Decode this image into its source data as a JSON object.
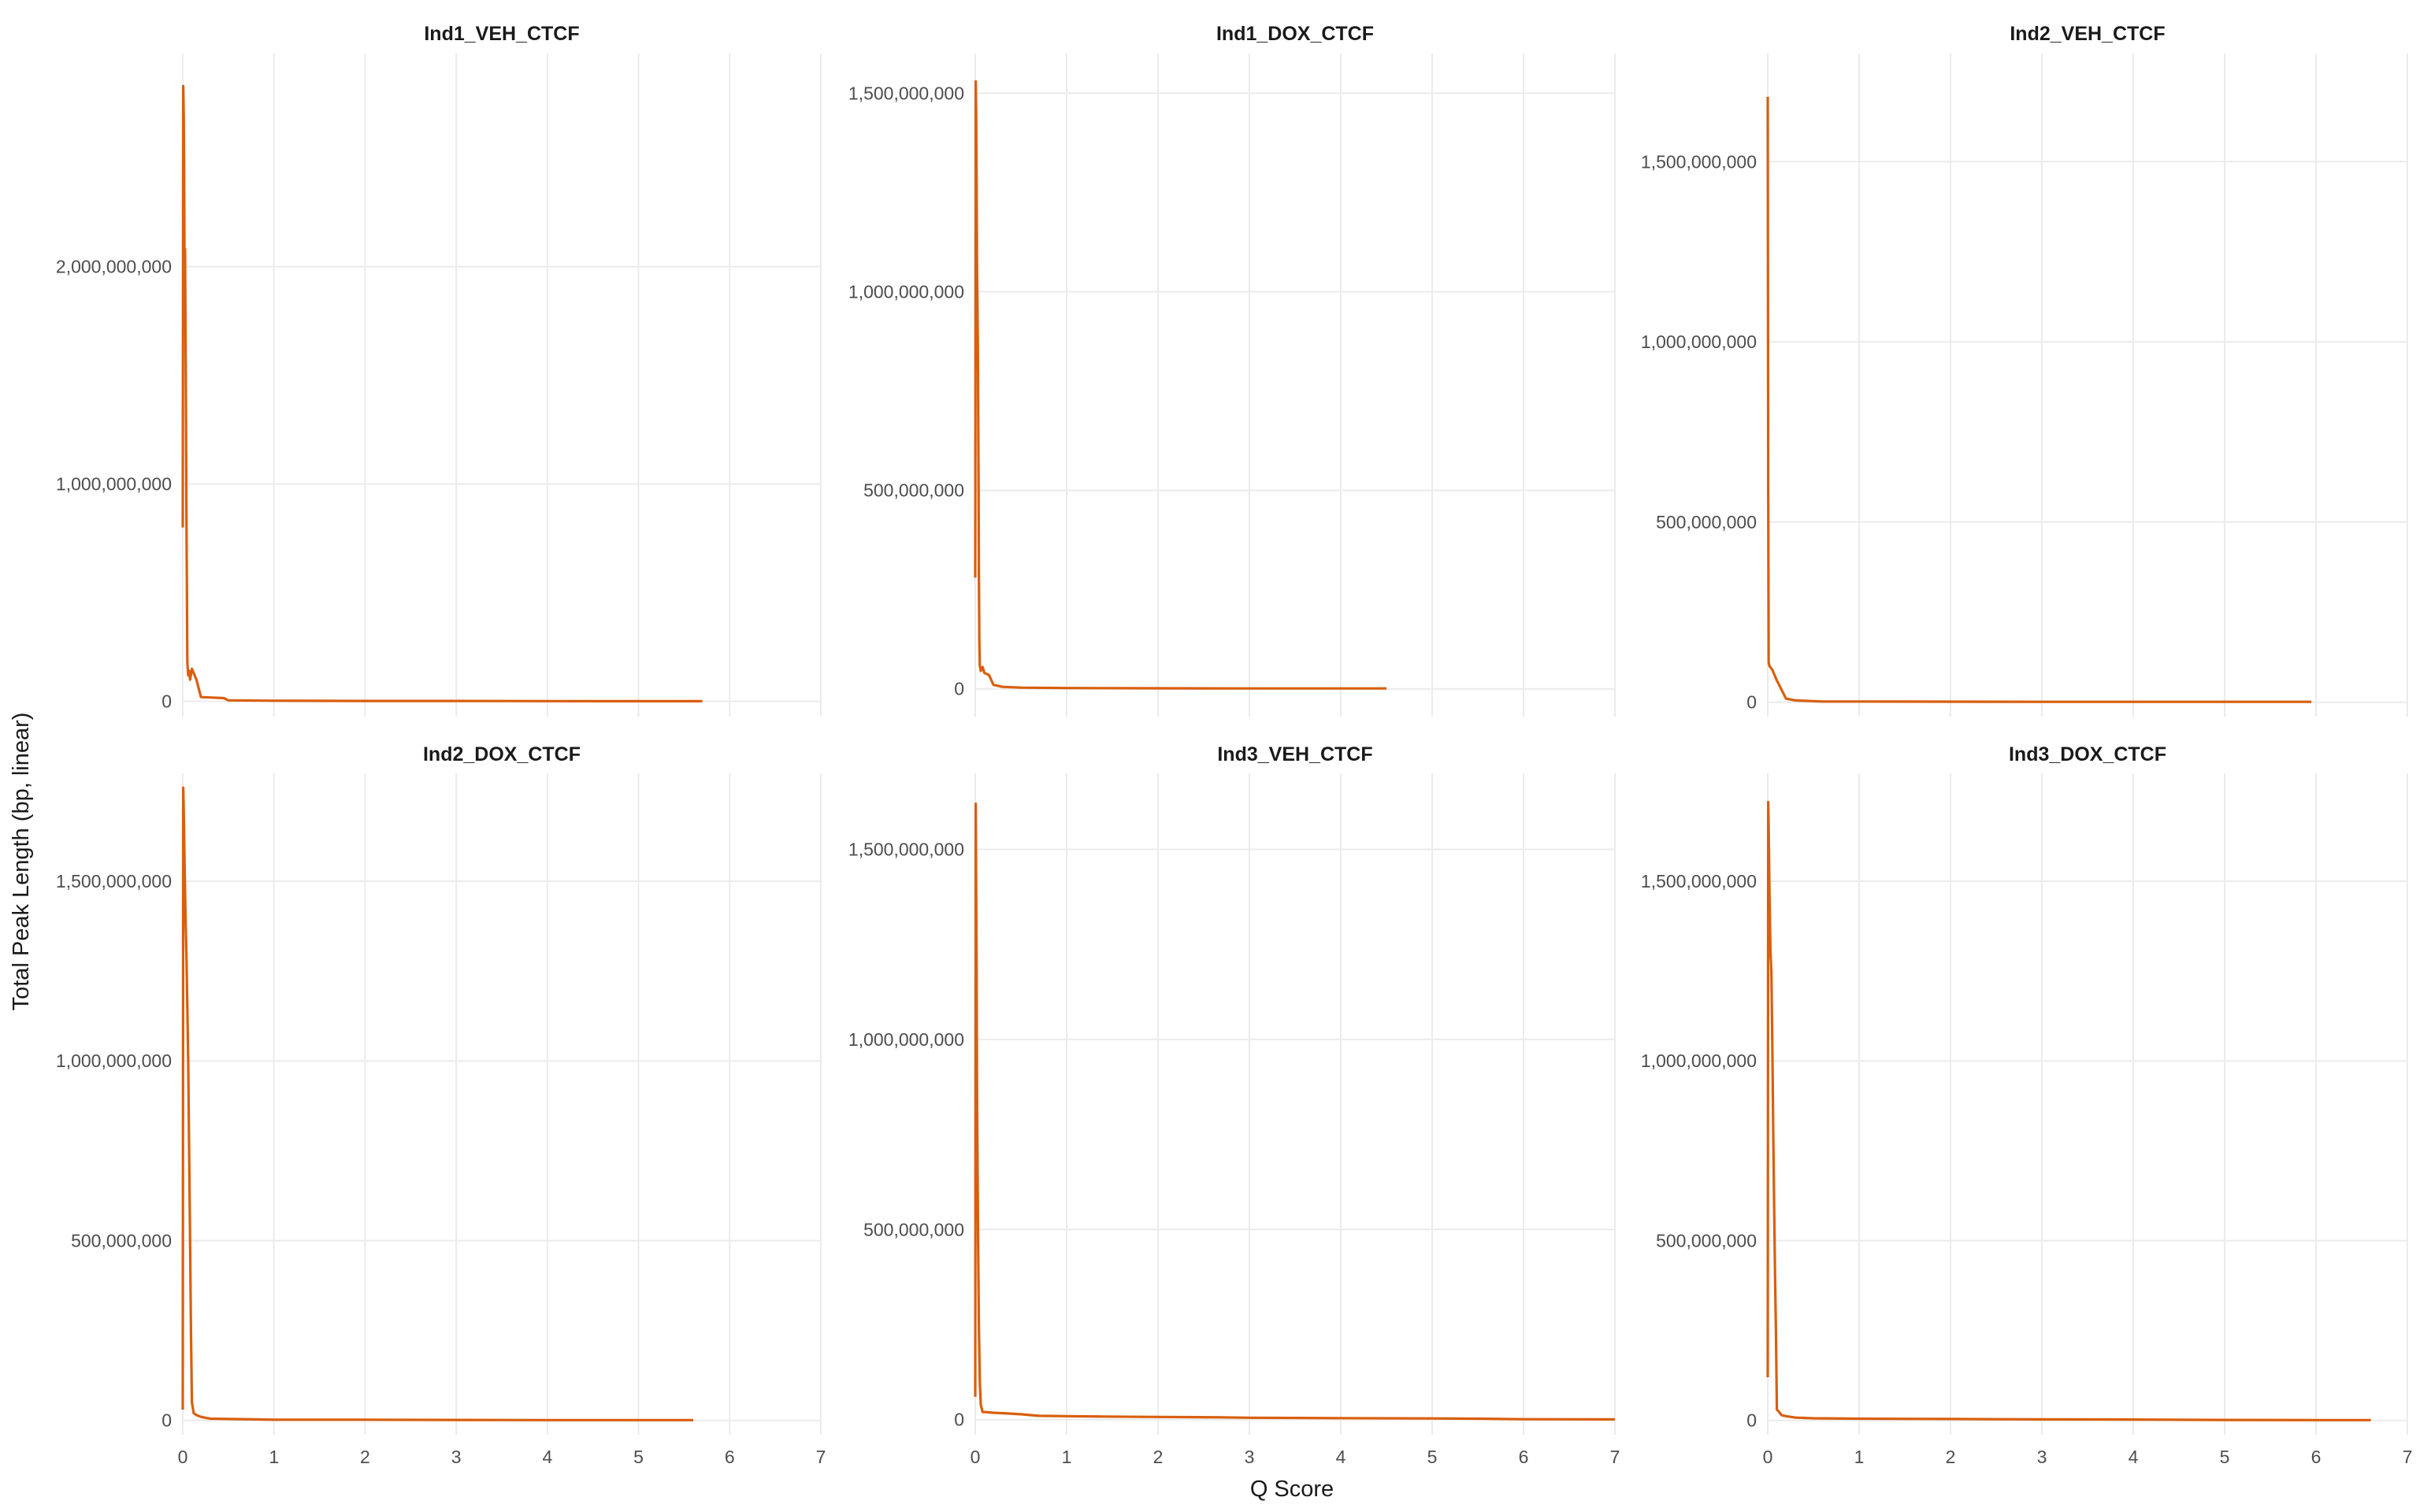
{
  "chart_data": {
    "type": "line",
    "xlabel": "Q Score",
    "ylabel": "Total Peak Length (bp, linear)",
    "xlim": [
      0,
      7
    ],
    "xticks": [
      0,
      1,
      2,
      3,
      4,
      5,
      6,
      7
    ],
    "grid": true,
    "line_color": "#D95F0E",
    "panels": [
      {
        "title": "Ind1_VEH_CTCF",
        "ylim": [
          -70000000,
          2980000000
        ],
        "yticks": [
          0,
          1000000000,
          2000000000
        ],
        "ytick_labels": [
          "0",
          "1,000,000,000",
          "2,000,000,000"
        ],
        "x": [
          0.0,
          0.005,
          0.01,
          0.015,
          0.02,
          0.025,
          0.03,
          0.035,
          0.04,
          0.045,
          0.05,
          0.06,
          0.07,
          0.08,
          0.1,
          0.15,
          0.2,
          0.3,
          0.45,
          0.5,
          1.0,
          2.0,
          3.0,
          4.0,
          5.0,
          5.7
        ],
        "y": [
          800000000,
          2830000000,
          2700000000,
          2450000000,
          1950000000,
          2080000000,
          1700000000,
          1300000000,
          900000000,
          560000000,
          180000000,
          120000000,
          140000000,
          100000000,
          150000000,
          100000000,
          20000000,
          18000000,
          15000000,
          5000000,
          3000000,
          2000000,
          2000000,
          1500000,
          1000000,
          1000000
        ]
      },
      {
        "title": "Ind1_DOX_CTCF",
        "ylim": [
          -70000000,
          1600000000
        ],
        "yticks": [
          0,
          500000000,
          1000000000,
          1500000000
        ],
        "ytick_labels": [
          "0",
          "500,000,000",
          "1,000,000,000",
          "1,500,000,000"
        ],
        "x": [
          0.0,
          0.005,
          0.01,
          0.015,
          0.02,
          0.025,
          0.03,
          0.035,
          0.04,
          0.045,
          0.05,
          0.06,
          0.08,
          0.1,
          0.15,
          0.2,
          0.3,
          0.5,
          1.0,
          2.0,
          3.0,
          4.0,
          4.5
        ],
        "y": [
          280000000,
          1530000000,
          1450000000,
          1280000000,
          1050000000,
          950000000,
          800000000,
          560000000,
          300000000,
          120000000,
          60000000,
          45000000,
          55000000,
          40000000,
          35000000,
          10000000,
          5000000,
          3000000,
          2000000,
          1500000,
          1000000,
          1000000,
          1000000
        ]
      },
      {
        "title": "Ind2_VEH_CTCF",
        "ylim": [
          -40000000,
          1800000000
        ],
        "yticks": [
          0,
          500000000,
          1000000000,
          1500000000
        ],
        "ytick_labels": [
          "0",
          "500,000,000",
          "1,000,000,000",
          "1,500,000,000"
        ],
        "x": [
          0.0,
          0.005,
          0.01,
          0.02,
          0.05,
          0.1,
          0.2,
          0.3,
          0.4,
          0.5,
          0.6,
          1.0,
          2.0,
          3.0,
          4.0,
          5.0,
          5.95
        ],
        "y": [
          1680000000,
          600000000,
          110000000,
          100000000,
          90000000,
          60000000,
          10000000,
          5000000,
          4000000,
          3000000,
          2000000,
          2000000,
          1500000,
          1000000,
          1000000,
          1000000,
          1000000
        ]
      },
      {
        "title": "Ind2_DOX_CTCF",
        "ylim": [
          -40000000,
          1800000000
        ],
        "yticks": [
          0,
          500000000,
          1000000000,
          1500000000
        ],
        "ytick_labels": [
          "0",
          "500,000,000",
          "1,000,000,000",
          "1,500,000,000"
        ],
        "x": [
          0.0,
          0.005,
          0.01,
          0.02,
          0.03,
          0.04,
          0.05,
          0.06,
          0.07,
          0.08,
          0.09,
          0.1,
          0.12,
          0.15,
          0.2,
          0.3,
          0.5,
          0.8,
          1.0,
          2.0,
          3.0,
          4.0,
          5.0,
          5.6
        ],
        "y": [
          30000000,
          1760000000,
          1700000000,
          1550000000,
          1400000000,
          1300000000,
          1150000000,
          1000000000,
          750000000,
          500000000,
          250000000,
          50000000,
          20000000,
          15000000,
          10000000,
          5000000,
          4000000,
          3000000,
          2000000,
          2000000,
          1500000,
          1000000,
          1000000,
          1000000
        ]
      },
      {
        "title": "Ind3_VEH_CTCF",
        "ylim": [
          -40000000,
          1700000000
        ],
        "yticks": [
          0,
          500000000,
          1000000000,
          1500000000
        ],
        "ytick_labels": [
          "0",
          "500,000,000",
          "1,000,000,000",
          "1,500,000,000"
        ],
        "x": [
          0.0,
          0.005,
          0.01,
          0.015,
          0.02,
          0.03,
          0.04,
          0.05,
          0.06,
          0.08,
          0.1,
          0.2,
          0.3,
          0.5,
          0.7,
          1.0,
          1.4,
          2.0,
          2.7,
          3.0,
          4.0,
          5.0,
          5.5,
          6.0,
          7.0
        ],
        "y": [
          60000000,
          1620000000,
          1400000000,
          1200000000,
          850000000,
          500000000,
          250000000,
          100000000,
          40000000,
          20000000,
          20000000,
          18000000,
          17000000,
          14000000,
          10000000,
          9000000,
          8000000,
          7000000,
          6000000,
          5000000,
          4000000,
          3000000,
          2500000,
          1000000,
          500000
        ]
      },
      {
        "title": "Ind3_DOX_CTCF",
        "ylim": [
          -40000000,
          1800000000
        ],
        "yticks": [
          0,
          500000000,
          1000000000,
          1500000000
        ],
        "ytick_labels": [
          "0",
          "500,000,000",
          "1,000,000,000",
          "1,500,000,000"
        ],
        "x": [
          0.0,
          0.005,
          0.01,
          0.02,
          0.03,
          0.04,
          0.05,
          0.06,
          0.07,
          0.08,
          0.09,
          0.1,
          0.12,
          0.15,
          0.2,
          0.3,
          0.5,
          1.0,
          2.0,
          3.0,
          4.0,
          4.4,
          5.0,
          6.0,
          6.6
        ],
        "y": [
          120000000,
          1720000000,
          1650000000,
          1450000000,
          1300000000,
          1250000000,
          1050000000,
          800000000,
          600000000,
          400000000,
          250000000,
          30000000,
          25000000,
          15000000,
          12000000,
          8000000,
          6000000,
          5000000,
          4000000,
          3000000,
          2500000,
          2000000,
          1500000,
          1000000,
          1000000
        ]
      }
    ]
  }
}
